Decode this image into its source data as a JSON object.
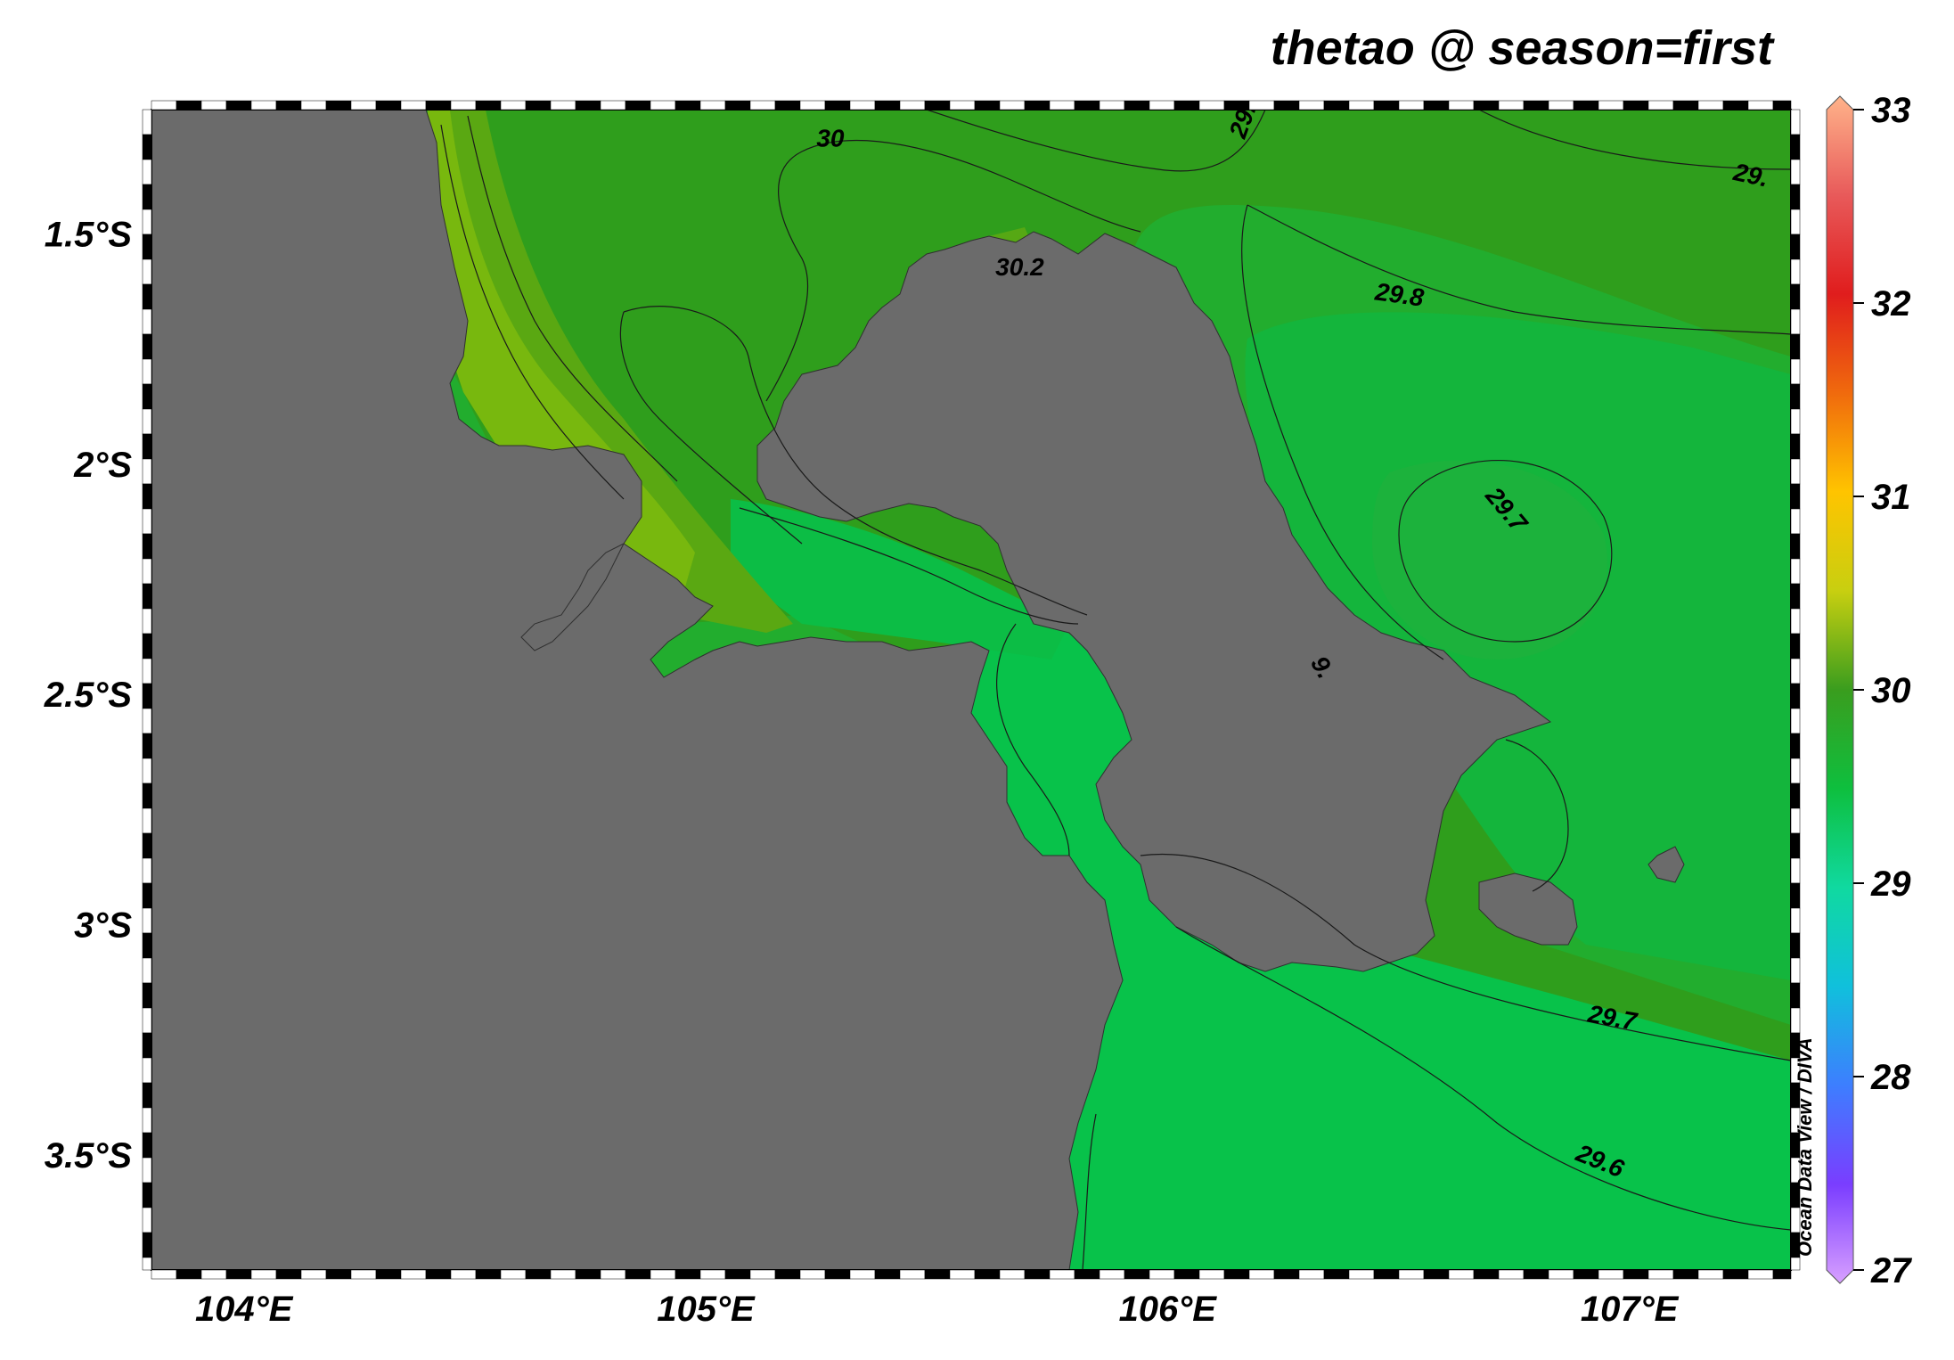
{
  "title": "thetao @ season=first",
  "watermark": "Ocean Data View / DIVA",
  "map": {
    "lon_range": [
      103.8,
      107.35
    ],
    "lat_range": [
      -3.75,
      -1.23
    ],
    "x_ticks": [
      {
        "value": 104,
        "label": "104°E"
      },
      {
        "value": 105,
        "label": "105°E"
      },
      {
        "value": 106,
        "label": "106°E"
      },
      {
        "value": 107,
        "label": "107°E"
      }
    ],
    "y_ticks": [
      {
        "value": -1.5,
        "label": "1.5°S"
      },
      {
        "value": -2.0,
        "label": "2°S"
      },
      {
        "value": -2.5,
        "label": "2.5°S"
      },
      {
        "value": -3.0,
        "label": "3°S"
      },
      {
        "value": -3.5,
        "label": "3.5°S"
      }
    ],
    "land_color": "#6b6b6b",
    "contour_labels": [
      {
        "text": "30",
        "lon": 105.27,
        "lat": -1.31,
        "angle": 0
      },
      {
        "text": "29.",
        "lon": 106.18,
        "lat": -1.26,
        "angle": -70
      },
      {
        "text": "29.",
        "lon": 107.26,
        "lat": -1.39,
        "angle": 12
      },
      {
        "text": "30.2",
        "lon": 105.68,
        "lat": -1.59,
        "angle": 0
      },
      {
        "text": "29.8",
        "lon": 106.5,
        "lat": -1.65,
        "angle": 8
      },
      {
        "text": "29.7",
        "lon": 106.72,
        "lat": -2.11,
        "angle": 50
      },
      {
        "text": "9.",
        "lon": 106.32,
        "lat": -2.45,
        "angle": 60
      },
      {
        "text": "29.7",
        "lon": 106.96,
        "lat": -3.22,
        "angle": 10
      },
      {
        "text": "29.6",
        "lon": 106.93,
        "lat": -3.53,
        "angle": 22
      }
    ]
  },
  "colorbar": {
    "min": 27,
    "max": 33,
    "ticks": [
      "33",
      "32",
      "31",
      "30",
      "29",
      "28",
      "27"
    ],
    "colors": [
      "#ffb38a",
      "#e85a5a",
      "#e01d1d",
      "#f06a0d",
      "#ffc400",
      "#c8cf10",
      "#3a9d1e",
      "#0ebf3e",
      "#10d9a0",
      "#10c0dc",
      "#3d7eff",
      "#7a3dff",
      "#d8a0ff"
    ]
  },
  "legend_field_colors": {
    "sea_dark": "#2f9e1c",
    "sea_mid": "#22ad2e",
    "sea_light": "#08c24a",
    "coast_warm": "#7ab80f",
    "estuary": "#b3c81c"
  }
}
